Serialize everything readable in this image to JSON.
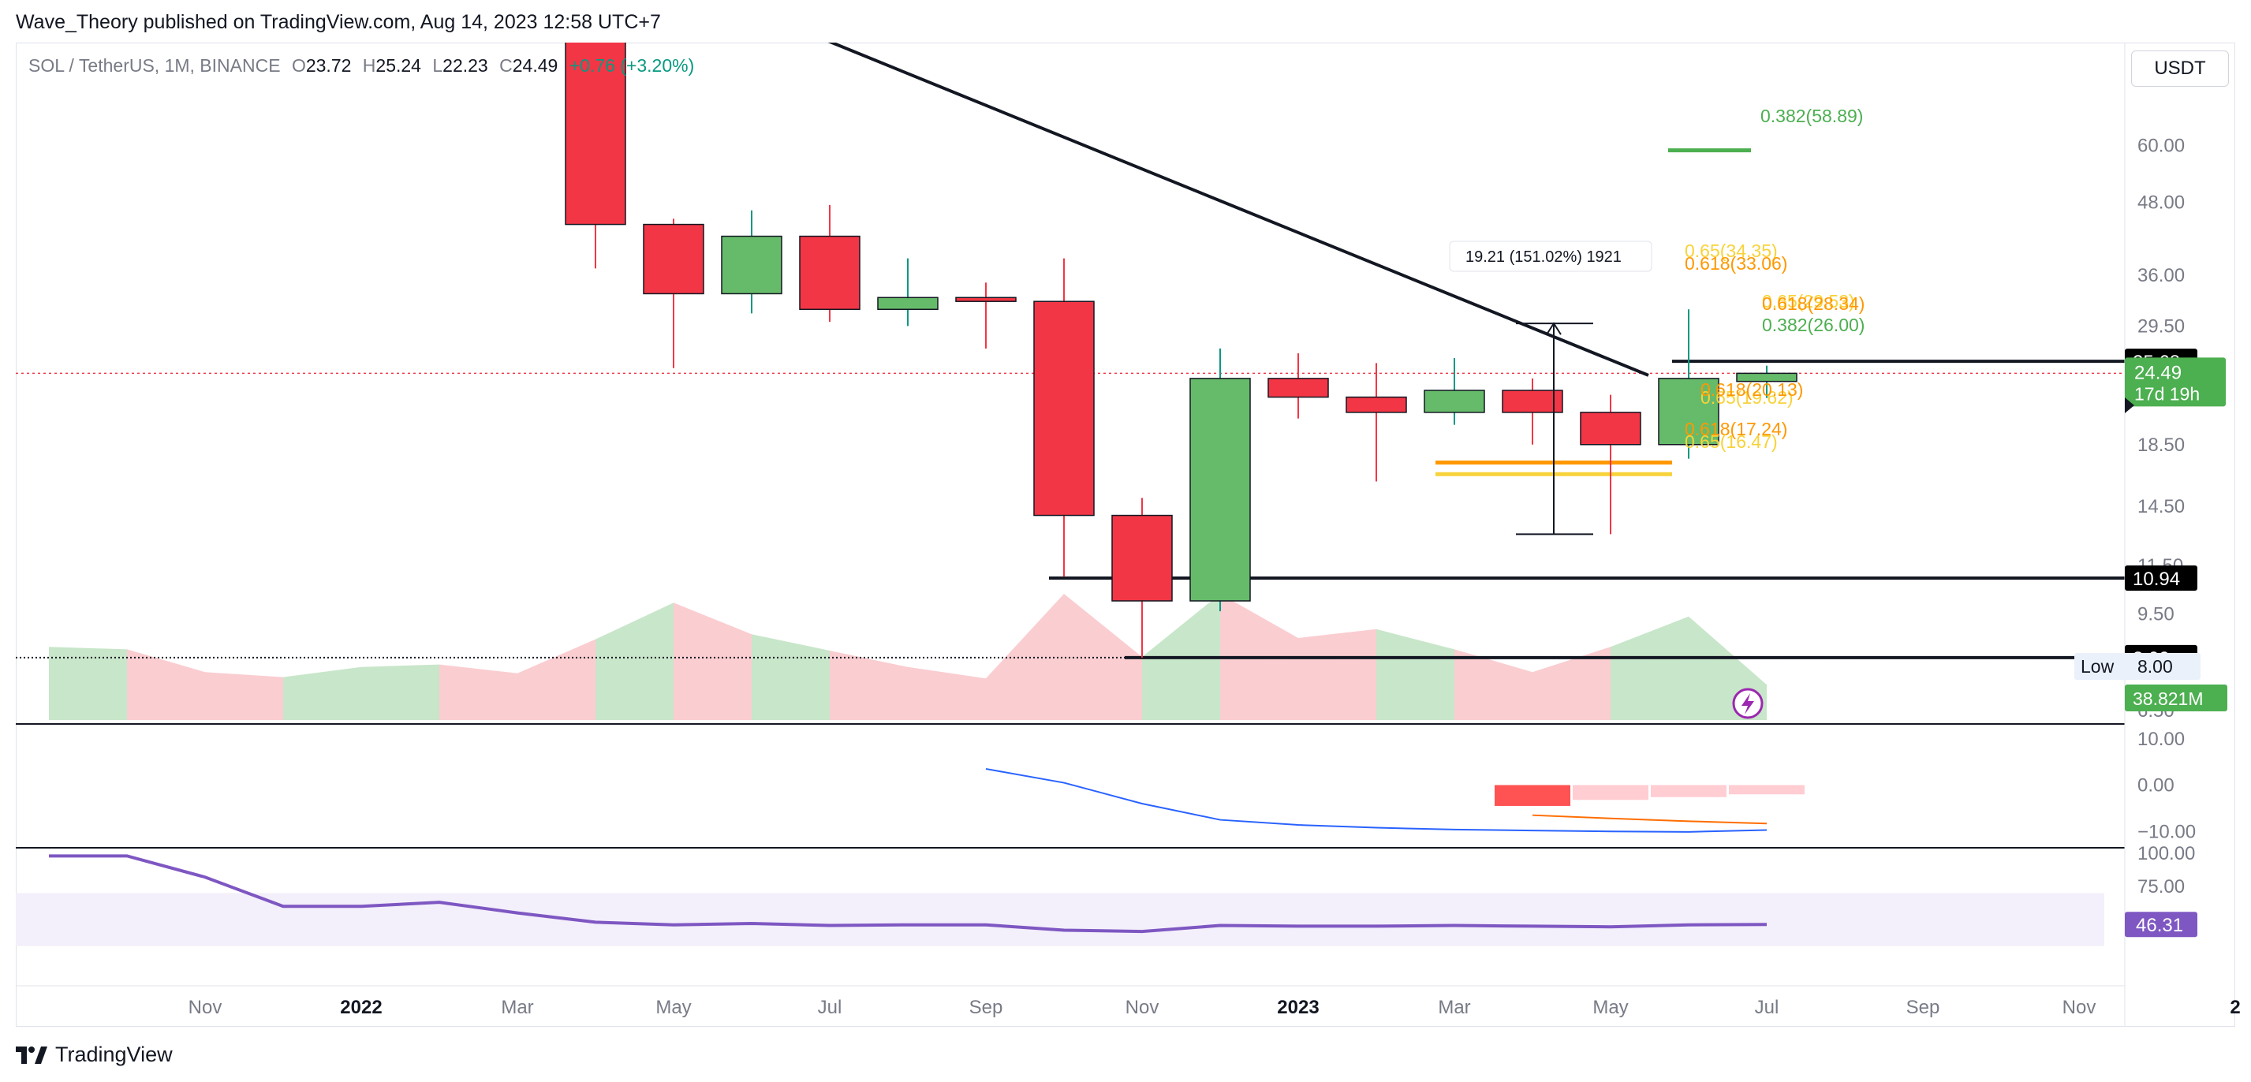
{
  "header": {
    "published": "Wave_Theory published on TradingView.com, Aug 14, 2023 12:58 UTC+7"
  },
  "legend": {
    "symbol": "SOL / TetherUS, 1M, BINANCE",
    "o_label": "O",
    "o": "23.72",
    "h_label": "H",
    "h": "25.24",
    "l_label": "L",
    "l": "22.23",
    "c_label": "C",
    "c": "24.49",
    "change": "+0.76 (+3.20%)"
  },
  "currency_button": "USDT",
  "brand": {
    "name": "TradingView",
    "logo_icon": "tradingview-logo-icon"
  },
  "colors": {
    "up": "#66bb6a",
    "down": "#f23645",
    "vol_up": "#c8e6c9",
    "vol_down": "#facdd1",
    "macd": "#2962ff",
    "signal": "#ff6d00",
    "rsi": "#7e57c2",
    "fib_orange": "#ff9800",
    "fib_yellow": "#f7d33a",
    "fib_green": "#4caf50"
  },
  "chart_data": [
    {
      "type": "candlestick",
      "scale": "log",
      "ylim": [
        6.2,
        90
      ],
      "x_axis_labels": [
        "Nov",
        "2022",
        "Mar",
        "May",
        "Jul",
        "Sep",
        "Nov",
        "2023",
        "Mar",
        "May",
        "Jul",
        "Sep",
        "Nov",
        "2"
      ],
      "y_axis_labels": [
        "60.00",
        "48.00",
        "36.00",
        "29.50",
        "18.50",
        "14.50",
        "11.50",
        "9.50",
        "6.50"
      ],
      "candles": [
        {
          "date": "2022-04",
          "o": 100.0,
          "h": 130.0,
          "l": 37.0,
          "c": 44.0
        },
        {
          "date": "2022-05",
          "o": 44.0,
          "h": 45.0,
          "l": 25.0,
          "c": 33.5
        },
        {
          "date": "2022-06",
          "o": 33.5,
          "h": 46.5,
          "l": 31.0,
          "c": 42.0
        },
        {
          "date": "2022-07",
          "o": 42.0,
          "h": 47.5,
          "l": 30.0,
          "c": 31.5
        },
        {
          "date": "2022-08",
          "o": 31.5,
          "h": 38.5,
          "l": 29.5,
          "c": 33.0
        },
        {
          "date": "2022-09",
          "o": 33.0,
          "h": 35.0,
          "l": 27.0,
          "c": 32.5
        },
        {
          "date": "2022-10",
          "o": 32.5,
          "h": 38.5,
          "l": 11.0,
          "c": 14.0
        },
        {
          "date": "2022-11",
          "o": 14.0,
          "h": 15.0,
          "l": 8.0,
          "c": 10.0
        },
        {
          "date": "2022-12",
          "o": 10.0,
          "h": 27.0,
          "l": 9.6,
          "c": 24.0
        },
        {
          "date": "2023-01",
          "o": 24.0,
          "h": 26.5,
          "l": 20.5,
          "c": 22.3
        },
        {
          "date": "2023-02",
          "o": 22.3,
          "h": 25.5,
          "l": 16.0,
          "c": 21.0
        },
        {
          "date": "2023-03",
          "o": 21.0,
          "h": 26.0,
          "l": 20.0,
          "c": 22.9
        },
        {
          "date": "2023-04",
          "o": 22.9,
          "h": 24.0,
          "l": 18.5,
          "c": 21.0
        },
        {
          "date": "2023-05",
          "o": 21.0,
          "h": 22.5,
          "l": 13.0,
          "c": 18.5
        },
        {
          "date": "2023-06",
          "o": 18.5,
          "h": 31.5,
          "l": 17.5,
          "c": 24.0
        },
        {
          "date": "2023-07",
          "o": 23.72,
          "h": 25.24,
          "l": 22.23,
          "c": 24.49
        }
      ],
      "volume": [
        {
          "date": "2021-09",
          "v": 0.58,
          "up": true
        },
        {
          "date": "2021-10",
          "v": 0.56,
          "up": true
        },
        {
          "date": "2021-11",
          "v": 0.38,
          "up": false
        },
        {
          "date": "2021-12",
          "v": 0.34,
          "up": false
        },
        {
          "date": "2022-01",
          "v": 0.42,
          "up": true
        },
        {
          "date": "2022-02",
          "v": 0.44,
          "up": true
        },
        {
          "date": "2022-03",
          "v": 0.37,
          "up": false
        },
        {
          "date": "2022-04",
          "v": 0.64,
          "up": false
        },
        {
          "date": "2022-05",
          "v": 0.93,
          "up": true
        },
        {
          "date": "2022-06",
          "v": 0.68,
          "up": false
        },
        {
          "date": "2022-07",
          "v": 0.55,
          "up": true
        },
        {
          "date": "2022-08",
          "v": 0.42,
          "up": false
        },
        {
          "date": "2022-09",
          "v": 0.33,
          "up": false
        },
        {
          "date": "2022-10",
          "v": 1.0,
          "up": false
        },
        {
          "date": "2022-11",
          "v": 0.5,
          "up": false
        },
        {
          "date": "2022-12",
          "v": 1.0,
          "up": true
        },
        {
          "date": "2023-01",
          "v": 0.65,
          "up": false
        },
        {
          "date": "2023-02",
          "v": 0.72,
          "up": false
        },
        {
          "date": "2023-03",
          "v": 0.56,
          "up": true
        },
        {
          "date": "2023-04",
          "v": 0.38,
          "up": false
        },
        {
          "date": "2023-05",
          "v": 0.58,
          "up": false
        },
        {
          "date": "2023-06",
          "v": 0.82,
          "up": true
        },
        {
          "date": "2023-07",
          "v": 0.28,
          "up": true
        }
      ],
      "fib_labels": [
        {
          "text": "0.382(58.89)",
          "price": 58.89,
          "color": "green"
        },
        {
          "text": "0.65(34.35)",
          "price": 34.35,
          "color": "yellow"
        },
        {
          "text": "0.618(33.06)",
          "price": 33.06,
          "color": "orange"
        },
        {
          "text": "0.65(29.53)",
          "price": 29.53,
          "color": "yellow"
        },
        {
          "text": "0.618(28.34)",
          "price": 28.34,
          "color": "orange"
        },
        {
          "text": "0.382(26.00)",
          "price": 26.0,
          "color": "green"
        },
        {
          "text": "0.65(19.62)",
          "price": 19.62,
          "color": "yellow"
        },
        {
          "text": "0.618(20.13)",
          "price": 20.13,
          "color": "orange"
        },
        {
          "text": "0.618(17.24)",
          "price": 17.24,
          "color": "orange"
        },
        {
          "text": "0.65(16.47)",
          "price": 16.47,
          "color": "yellow"
        }
      ],
      "horizontal_levels": [
        "25.68",
        "10.94",
        "8.00"
      ],
      "measure_label": "19.21 (151.02%) 1921",
      "price_badge": {
        "price": "24.49",
        "countdown": "17d 19h"
      },
      "low_label": {
        "label": "Low",
        "value": "8.00"
      },
      "volume_badge": "38.821M"
    },
    {
      "type": "line",
      "name": "macd-panel",
      "y_axis_labels": [
        "10.00",
        "0.00",
        "−10.00"
      ],
      "ylim": [
        -12,
        12
      ],
      "macd_line": [
        {
          "date": "2022-09",
          "y": 3.5
        },
        {
          "date": "2022-10",
          "y": 0.5
        },
        {
          "date": "2022-11",
          "y": -4.0
        },
        {
          "date": "2022-12",
          "y": -7.5
        },
        {
          "date": "2023-01",
          "y": -8.6
        },
        {
          "date": "2023-02",
          "y": -9.2
        },
        {
          "date": "2023-03",
          "y": -9.6
        },
        {
          "date": "2023-04",
          "y": -9.8
        },
        {
          "date": "2023-05",
          "y": -10.0
        },
        {
          "date": "2023-06",
          "y": -10.1
        },
        {
          "date": "2023-07",
          "y": -9.7
        }
      ],
      "signal_line": [
        {
          "date": "2023-04",
          "y": -6.5
        },
        {
          "date": "2023-05",
          "y": -7.2
        },
        {
          "date": "2023-06",
          "y": -7.8
        },
        {
          "date": "2023-07",
          "y": -8.3
        }
      ],
      "histogram": [
        {
          "date": "2023-04",
          "y": -4.5
        },
        {
          "date": "2023-05",
          "y": -3.2
        },
        {
          "date": "2023-06",
          "y": -2.6
        },
        {
          "date": "2023-07",
          "y": -2.0
        }
      ]
    },
    {
      "type": "line",
      "name": "rsi-panel",
      "y_axis_labels": [
        "100.00",
        "75.00"
      ],
      "ylim": [
        0,
        100
      ],
      "band": [
        30,
        70
      ],
      "rsi_line": [
        {
          "date": "2021-09",
          "y": 98
        },
        {
          "date": "2021-10",
          "y": 98
        },
        {
          "date": "2021-11",
          "y": 82
        },
        {
          "date": "2021-12",
          "y": 60
        },
        {
          "date": "2022-01",
          "y": 60
        },
        {
          "date": "2022-02",
          "y": 63
        },
        {
          "date": "2022-03",
          "y": 55
        },
        {
          "date": "2022-04",
          "y": 48
        },
        {
          "date": "2022-05",
          "y": 46
        },
        {
          "date": "2022-06",
          "y": 47
        },
        {
          "date": "2022-07",
          "y": 45.5
        },
        {
          "date": "2022-08",
          "y": 46
        },
        {
          "date": "2022-09",
          "y": 46
        },
        {
          "date": "2022-10",
          "y": 42
        },
        {
          "date": "2022-11",
          "y": 41
        },
        {
          "date": "2022-12",
          "y": 45.5
        },
        {
          "date": "2023-01",
          "y": 45
        },
        {
          "date": "2023-02",
          "y": 45
        },
        {
          "date": "2023-03",
          "y": 45.5
        },
        {
          "date": "2023-04",
          "y": 45
        },
        {
          "date": "2023-05",
          "y": 44.5
        },
        {
          "date": "2023-06",
          "y": 46
        },
        {
          "date": "2023-07",
          "y": 46.31
        }
      ],
      "value_badge": "46.31"
    }
  ]
}
